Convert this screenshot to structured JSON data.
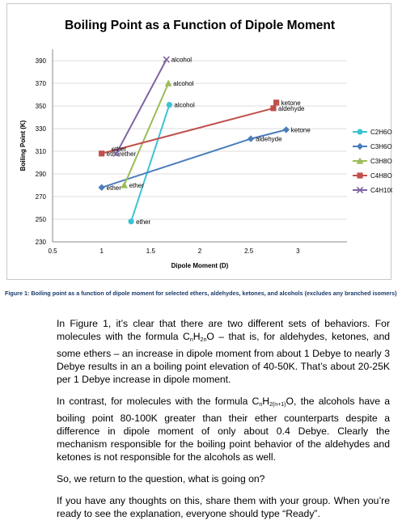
{
  "chart_data": {
    "type": "scatter",
    "title": "Boiling Point as a Function of Dipole Moment",
    "xlabel": "Dipole Moment (D)",
    "ylabel": "Boiling Point (K)",
    "xlim": [
      0.5,
      3.5
    ],
    "ylim": [
      230,
      400
    ],
    "xticks": [
      "0.5",
      "1",
      "1.5",
      "2",
      "2.5",
      "3"
    ],
    "yticks": [
      "230",
      "250",
      "270",
      "290",
      "310",
      "330",
      "350",
      "370",
      "390"
    ],
    "grid": "horizontal",
    "legend_position": "right",
    "series": [
      {
        "name": "C2H6O",
        "color": "#3cc3d3",
        "marker": "circle",
        "points": [
          {
            "x": 1.3,
            "y": 248,
            "label": "ether"
          },
          {
            "x": 1.69,
            "y": 351,
            "label": "alcohol"
          }
        ]
      },
      {
        "name": "C3H6O",
        "color": "#4a7ebb",
        "marker": "diamond",
        "points": [
          {
            "x": 1.0,
            "y": 278,
            "label": "ether"
          },
          {
            "x": 2.52,
            "y": 321,
            "label": "aldehyde"
          },
          {
            "x": 2.88,
            "y": 329,
            "label": "ketone"
          }
        ]
      },
      {
        "name": "C3H8O",
        "color": "#9bbb59",
        "marker": "triangle",
        "points": [
          {
            "x": 1.23,
            "y": 280,
            "label": "ether"
          },
          {
            "x": 1.68,
            "y": 370,
            "label": "alcohol"
          }
        ]
      },
      {
        "name": "C4H8O",
        "color": "#c0504d",
        "marker": "square",
        "points": [
          {
            "x": 1.0,
            "y": 308,
            "label": "ether"
          },
          {
            "x": 2.75,
            "y": 348,
            "label": "aldehyde"
          },
          {
            "x": 2.78,
            "y": 353,
            "label": "ketone"
          }
        ]
      },
      {
        "name": "C4H10O",
        "color": "#8064a2",
        "marker": "x",
        "points": [
          {
            "x": 1.15,
            "y": 308,
            "label": "ether"
          },
          {
            "x": 1.66,
            "y": 391,
            "label": "alcohol"
          }
        ]
      }
    ],
    "extra_annotations": [
      {
        "x": 1.1,
        "y": 312,
        "text": "ether"
      }
    ]
  },
  "caption": "Figure 1: Boiling point as a function of dipole moment for selected ethers, aldehydes, ketones, and alcohols (excludes any branched isomers)",
  "paragraphs": [
    {
      "parts": [
        {
          "t": "In Figure 1, it’s clear that there are two different sets of behaviors.  For molecules with the formula C"
        },
        {
          "t": "n",
          "sub": true
        },
        {
          "t": "H"
        },
        {
          "t": "2n",
          "sub": true
        },
        {
          "t": "O – that is, for aldehydes, ketones, and some ethers – an increase in dipole moment from about 1 Debye to nearly 3 Debye results in an a boiling point elevation of 40-50K.  That’s about 20-25K per 1 Debye increase in dipole moment."
        }
      ]
    },
    {
      "parts": [
        {
          "t": "In contrast, for molecules with the formula C"
        },
        {
          "t": "n",
          "sub": true
        },
        {
          "t": "H"
        },
        {
          "t": "2(n+1)",
          "sub": true
        },
        {
          "t": "O, the alcohols have a boiling point 80-100K greater than their ether counterparts despite a difference in dipole moment of only about 0.4 Debye.   Clearly the mechanism responsible for the boiling point behavior of the aldehydes and ketones is not responsible for the alcohols as well."
        }
      ]
    },
    {
      "parts": [
        {
          "t": "So, we return to the question, what is going on?"
        }
      ]
    },
    {
      "parts": [
        {
          "t": "If you have any thoughts on this, share them with your group.  When you’re ready to see the explanation, everyone should type “Ready”."
        }
      ]
    }
  ]
}
